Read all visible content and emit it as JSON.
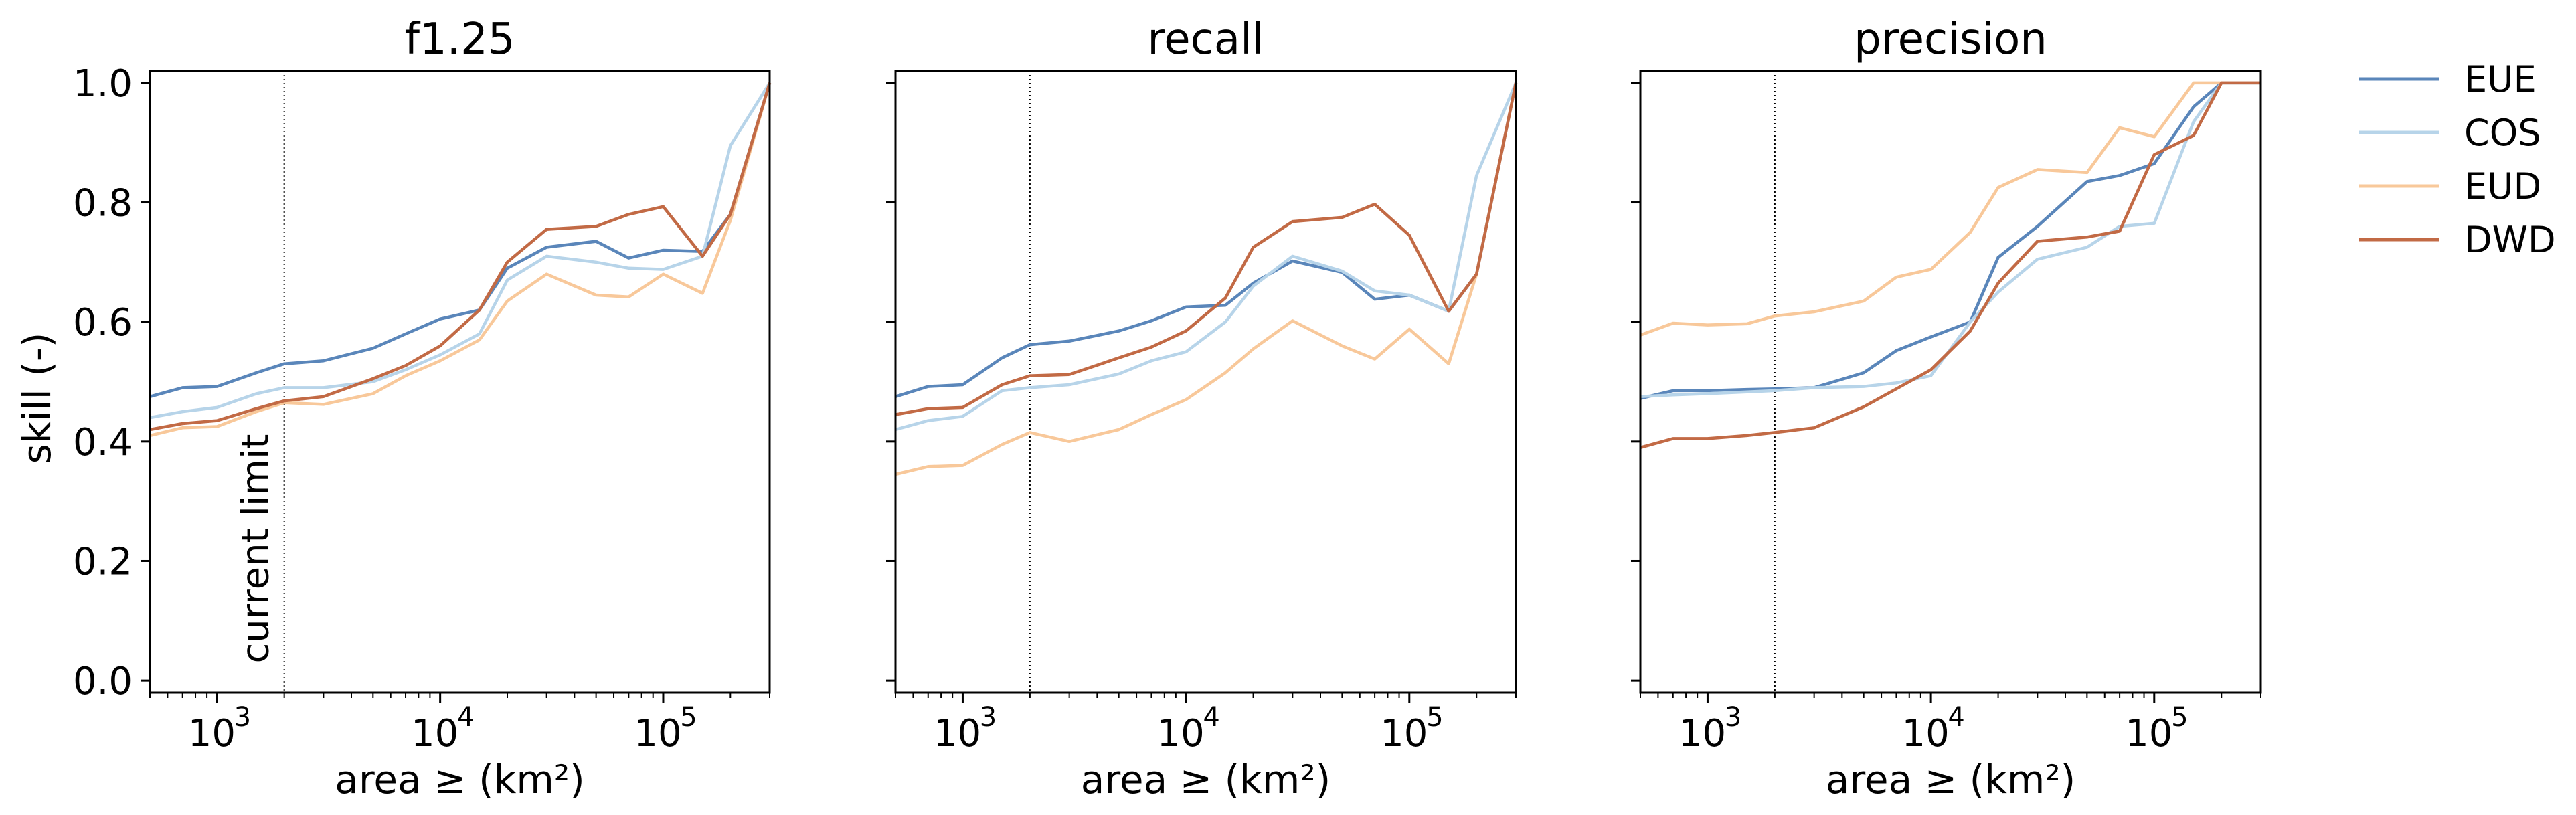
{
  "figure": {
    "ylabel": "skill (-)",
    "legend_position": "right, outside plot area",
    "shared_y": true
  },
  "chart_data": [
    {
      "type": "line",
      "title": "f1.25",
      "xlabel": "area ≥ (km²)",
      "ylabel": "skill (-)",
      "xscale": "log",
      "xlim": [
        500,
        300000
      ],
      "ylim": [
        -0.02,
        1.02
      ],
      "yticks": [
        "0.0",
        "0.2",
        "0.4",
        "0.6",
        "0.8",
        "1.0"
      ],
      "xticks": [
        {
          "value": 1000,
          "label": "10",
          "exp": "3"
        },
        {
          "value": 10000,
          "label": "10",
          "exp": "4"
        },
        {
          "value": 100000,
          "label": "10",
          "exp": "5"
        }
      ],
      "grid": false,
      "reference_line": {
        "x": 2000,
        "label": "current limit",
        "style": "dotted"
      },
      "x": [
        500,
        700,
        1000,
        1500,
        2000,
        3000,
        5000,
        7000,
        10000,
        15000,
        20000,
        30000,
        50000,
        70000,
        100000,
        150000,
        200000,
        300000
      ],
      "series": [
        {
          "name": "EUE",
          "color": "#5a86ba",
          "values": [
            0.475,
            0.49,
            0.492,
            0.515,
            0.53,
            0.535,
            0.556,
            0.58,
            0.605,
            0.62,
            0.69,
            0.725,
            0.735,
            0.707,
            0.72,
            0.718,
            0.78,
            1.0
          ]
        },
        {
          "name": "COS",
          "color": "#b7d4e9",
          "values": [
            0.44,
            0.45,
            0.457,
            0.48,
            0.49,
            0.49,
            0.5,
            0.52,
            0.545,
            0.58,
            0.67,
            0.71,
            0.7,
            0.69,
            0.688,
            0.71,
            0.895,
            1.0
          ]
        },
        {
          "name": "EUD",
          "color": "#f8c89a",
          "values": [
            0.41,
            0.423,
            0.425,
            0.45,
            0.465,
            0.462,
            0.48,
            0.51,
            0.535,
            0.57,
            0.635,
            0.68,
            0.645,
            0.642,
            0.68,
            0.648,
            0.77,
            1.0
          ]
        },
        {
          "name": "DWD",
          "color": "#c26a45",
          "values": [
            0.42,
            0.43,
            0.435,
            0.455,
            0.468,
            0.475,
            0.505,
            0.527,
            0.56,
            0.62,
            0.7,
            0.755,
            0.76,
            0.78,
            0.793,
            0.71,
            0.78,
            1.0
          ]
        }
      ]
    },
    {
      "type": "line",
      "title": "recall",
      "xlabel": "area ≥ (km²)",
      "xscale": "log",
      "xlim": [
        500,
        300000
      ],
      "ylim": [
        -0.02,
        1.02
      ],
      "xticks": [
        {
          "value": 1000,
          "label": "10",
          "exp": "3"
        },
        {
          "value": 10000,
          "label": "10",
          "exp": "4"
        },
        {
          "value": 100000,
          "label": "10",
          "exp": "5"
        }
      ],
      "grid": false,
      "reference_line": {
        "x": 2000,
        "style": "dotted"
      },
      "x": [
        500,
        700,
        1000,
        1500,
        2000,
        3000,
        5000,
        7000,
        10000,
        15000,
        20000,
        30000,
        50000,
        70000,
        100000,
        150000,
        200000,
        300000
      ],
      "series": [
        {
          "name": "EUE",
          "color": "#5a86ba",
          "values": [
            0.475,
            0.492,
            0.495,
            0.54,
            0.562,
            0.568,
            0.585,
            0.602,
            0.625,
            0.628,
            0.665,
            0.702,
            0.683,
            0.638,
            0.645,
            0.618,
            0.68,
            1.0
          ]
        },
        {
          "name": "COS",
          "color": "#b7d4e9",
          "values": [
            0.42,
            0.435,
            0.442,
            0.485,
            0.49,
            0.495,
            0.513,
            0.535,
            0.55,
            0.6,
            0.66,
            0.71,
            0.685,
            0.652,
            0.645,
            0.618,
            0.845,
            1.0
          ]
        },
        {
          "name": "EUD",
          "color": "#f8c89a",
          "values": [
            0.345,
            0.358,
            0.36,
            0.395,
            0.415,
            0.4,
            0.42,
            0.445,
            0.47,
            0.515,
            0.555,
            0.602,
            0.56,
            0.538,
            0.588,
            0.53,
            0.68,
            1.0
          ]
        },
        {
          "name": "DWD",
          "color": "#c26a45",
          "values": [
            0.445,
            0.455,
            0.457,
            0.495,
            0.51,
            0.512,
            0.54,
            0.558,
            0.585,
            0.64,
            0.725,
            0.768,
            0.775,
            0.797,
            0.745,
            0.618,
            0.68,
            1.0
          ]
        }
      ]
    },
    {
      "type": "line",
      "title": "precision",
      "xlabel": "area ≥ (km²)",
      "xscale": "log",
      "xlim": [
        500,
        300000
      ],
      "ylim": [
        -0.02,
        1.02
      ],
      "xticks": [
        {
          "value": 1000,
          "label": "10",
          "exp": "3"
        },
        {
          "value": 10000,
          "label": "10",
          "exp": "4"
        },
        {
          "value": 100000,
          "label": "10",
          "exp": "5"
        }
      ],
      "grid": false,
      "reference_line": {
        "x": 2000,
        "style": "dotted"
      },
      "x": [
        500,
        700,
        1000,
        1500,
        2000,
        3000,
        5000,
        7000,
        10000,
        15000,
        20000,
        30000,
        50000,
        70000,
        100000,
        150000,
        200000,
        300000
      ],
      "series": [
        {
          "name": "EUE",
          "color": "#5a86ba",
          "values": [
            0.472,
            0.485,
            0.485,
            0.487,
            0.488,
            0.49,
            0.515,
            0.552,
            0.575,
            0.6,
            0.708,
            0.76,
            0.835,
            0.845,
            0.865,
            0.96,
            1.0,
            1.0
          ]
        },
        {
          "name": "COS",
          "color": "#b7d4e9",
          "values": [
            0.475,
            0.478,
            0.48,
            0.483,
            0.485,
            0.49,
            0.492,
            0.498,
            0.51,
            0.6,
            0.65,
            0.705,
            0.725,
            0.76,
            0.765,
            0.935,
            1.0,
            1.0
          ]
        },
        {
          "name": "EUD",
          "color": "#f8c89a",
          "values": [
            0.578,
            0.598,
            0.595,
            0.597,
            0.61,
            0.617,
            0.635,
            0.675,
            0.688,
            0.75,
            0.825,
            0.855,
            0.85,
            0.925,
            0.91,
            1.0,
            1.0,
            1.0
          ]
        },
        {
          "name": "DWD",
          "color": "#c26a45",
          "values": [
            0.39,
            0.405,
            0.405,
            0.41,
            0.415,
            0.423,
            0.458,
            0.488,
            0.52,
            0.585,
            0.665,
            0.735,
            0.742,
            0.752,
            0.88,
            0.912,
            1.0,
            1.0
          ]
        }
      ]
    }
  ],
  "legend": {
    "items": [
      {
        "name": "EUE",
        "color": "#5a86ba"
      },
      {
        "name": "COS",
        "color": "#b7d4e9"
      },
      {
        "name": "EUD",
        "color": "#f8c89a"
      },
      {
        "name": "DWD",
        "color": "#c26a45"
      }
    ]
  }
}
